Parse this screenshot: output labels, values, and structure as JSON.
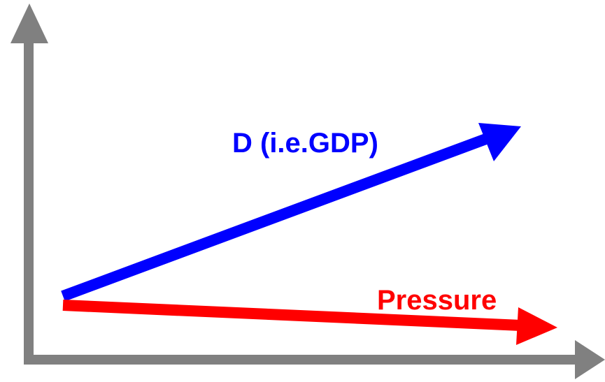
{
  "diagram": {
    "arrows": {
      "gdp": {
        "label": "D (i.e.GDP)",
        "color": "#0000ff"
      },
      "pressure": {
        "label": "Pressure",
        "color": "#ff0000"
      }
    },
    "axes": {
      "color": "#808080"
    }
  }
}
